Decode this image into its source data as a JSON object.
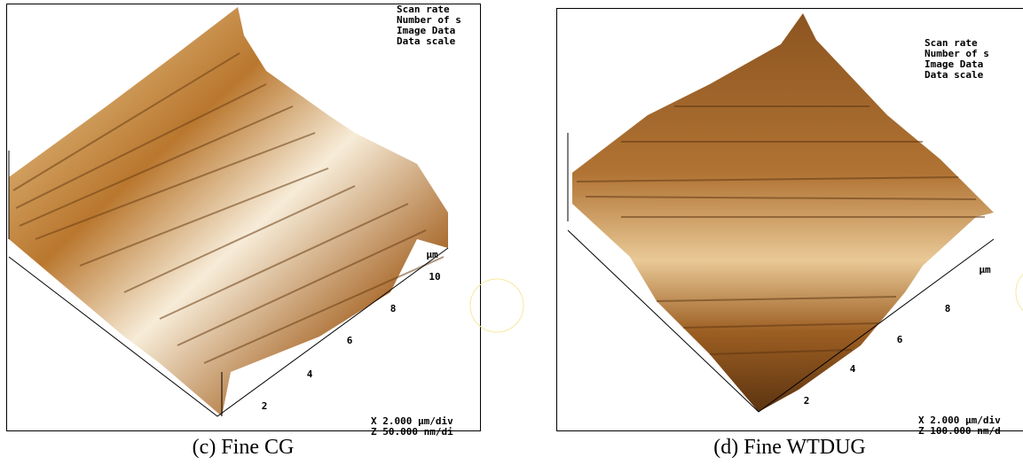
{
  "panels": [
    {
      "info": [
        "Scan rate",
        "Number of s",
        "Image Data",
        "Data scale"
      ],
      "axis_unit": "μm",
      "axis_ticks": [
        "2",
        "4",
        "6",
        "8",
        "10"
      ],
      "scale": [
        "X  2.000 μm/div",
        "Z  50.000 nm/di"
      ],
      "caption": "(c) Fine CG"
    },
    {
      "info": [
        "Scan rate",
        "Number of s",
        "Image Data",
        "Data scale"
      ],
      "axis_unit": "μm",
      "axis_ticks": [
        "2",
        "4",
        "6",
        "8"
      ],
      "scale": [
        "X  2.000 μm/div",
        "Z  100.000 nm/d"
      ],
      "caption": "(d) Fine WTDUG"
    }
  ]
}
